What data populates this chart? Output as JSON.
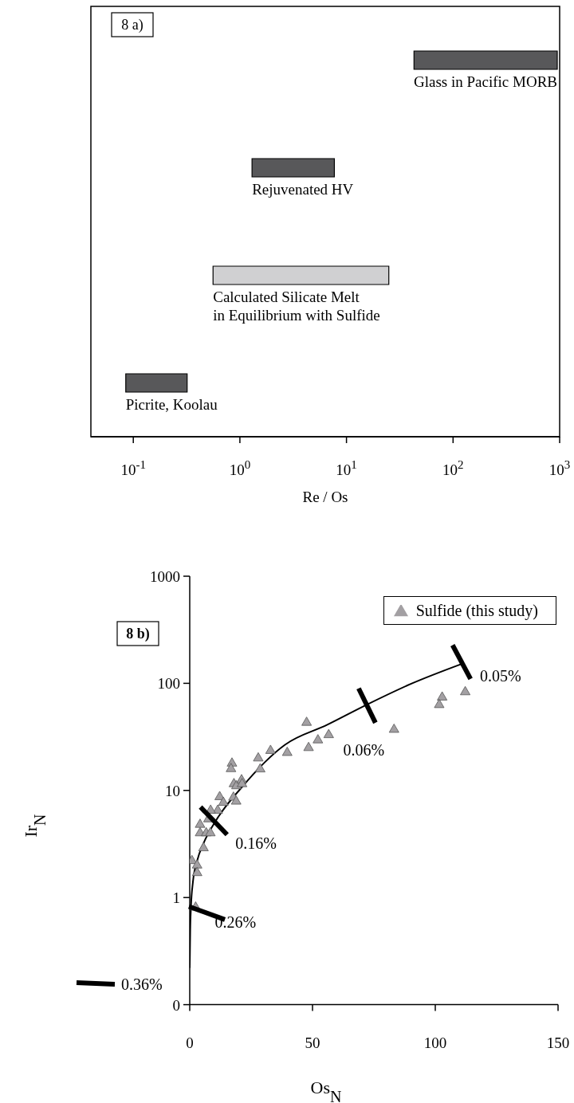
{
  "chart_data": [
    {
      "type": "bar",
      "orientation": "horizontal",
      "log": "x",
      "xlabel": "Re / Os",
      "categories": [
        "Glass in Pacific MORB",
        "Rejuvenated HV",
        "Calculated Silicate Melt\nin Equilibrium with Sulfide",
        "Picrite, Koolau"
      ],
      "base": [
        43,
        1.3,
        0.56,
        0.085
      ],
      "values": [
        907,
        6.4,
        24.4,
        0.235
      ],
      "colors": [
        "#58585a",
        "#58585a",
        "#d0d0d2",
        "#58585a"
      ],
      "xlim": [
        0.04,
        1000
      ],
      "xticks": [
        {
          "value": 0.1,
          "label": "10$^{-1}$"
        },
        {
          "value": 1,
          "label": "10$^{0}$"
        },
        {
          "value": 10,
          "label": "10$^{1}$"
        },
        {
          "value": 100,
          "label": "10$^{2}$"
        },
        {
          "value": 1000,
          "label": "10$^{3}$"
        }
      ],
      "tick_labels": "x",
      "annotations": [
        "8 a)"
      ]
    },
    {
      "type": "scatter",
      "log": "y",
      "xlabel": "Os$_{N}$",
      "ylabel": "Ir$_{N}$",
      "legend": "top right",
      "xlim": [
        0,
        150
      ],
      "xticks": [
        0,
        50,
        100,
        150
      ],
      "ylim": [
        0.1,
        1000
      ],
      "yticks": [
        {
          "value": 0.1,
          "label": "0"
        },
        1,
        10,
        100,
        1000
      ],
      "series": [
        {
          "name": "Sulfide (this study)",
          "type": "scatter",
          "marker": "triangle",
          "color": "#a3a0a3",
          "x": [
            112.2,
            102.8,
            101.6,
            83.2,
            47.6,
            48.4,
            52.2,
            56.6,
            39.7,
            32.9,
            27.9,
            28.7,
            17.2,
            16.8,
            18,
            19,
            21.1,
            21.3,
            17.8,
            18.9,
            12.2,
            13.7,
            11.4,
            8.5,
            7.6,
            4.2,
            4.2,
            6.7,
            8.4,
            5.6,
            0.9,
            3.0,
            3.0,
            2.4
          ],
          "values": [
            83,
            74,
            63,
            37,
            43,
            25,
            29.5,
            33,
            22.5,
            23.5,
            20,
            15.8,
            17.9,
            15.9,
            11.5,
            11,
            12.5,
            11.5,
            8.6,
            7.9,
            8.7,
            7.7,
            6.5,
            6.5,
            5.4,
            4.8,
            4.0,
            4.0,
            4.0,
            2.9,
            2.2,
            2.0,
            1.7,
            0.81
          ]
        },
        {
          "type": "line",
          "marker": "none",
          "color": "#000000",
          "x": [
            0,
            0.2,
            0.5,
            1.3,
            3.0,
            5.6,
            9.9,
            21.5,
            38.8,
            56,
            72,
            90.6,
            110.5
          ],
          "values": [
            0.22,
            0.5,
            0.81,
            1.4,
            2.2,
            3.2,
            4.9,
            10.9,
            26.7,
            41,
            63,
            100,
            151
          ]
        }
      ],
      "annotations": [
        "8 b)",
        {
          "text": "0.05%",
          "x": 110.7,
          "y": 158
        },
        {
          "text": "0.06%",
          "x": 72.2,
          "y": 62
        },
        {
          "text": "0.16%",
          "x": 9.8,
          "y": 5.2
        },
        {
          "text": "0.26%",
          "x": 0.5,
          "y": 0.81
        },
        "0.36%"
      ]
    }
  ]
}
